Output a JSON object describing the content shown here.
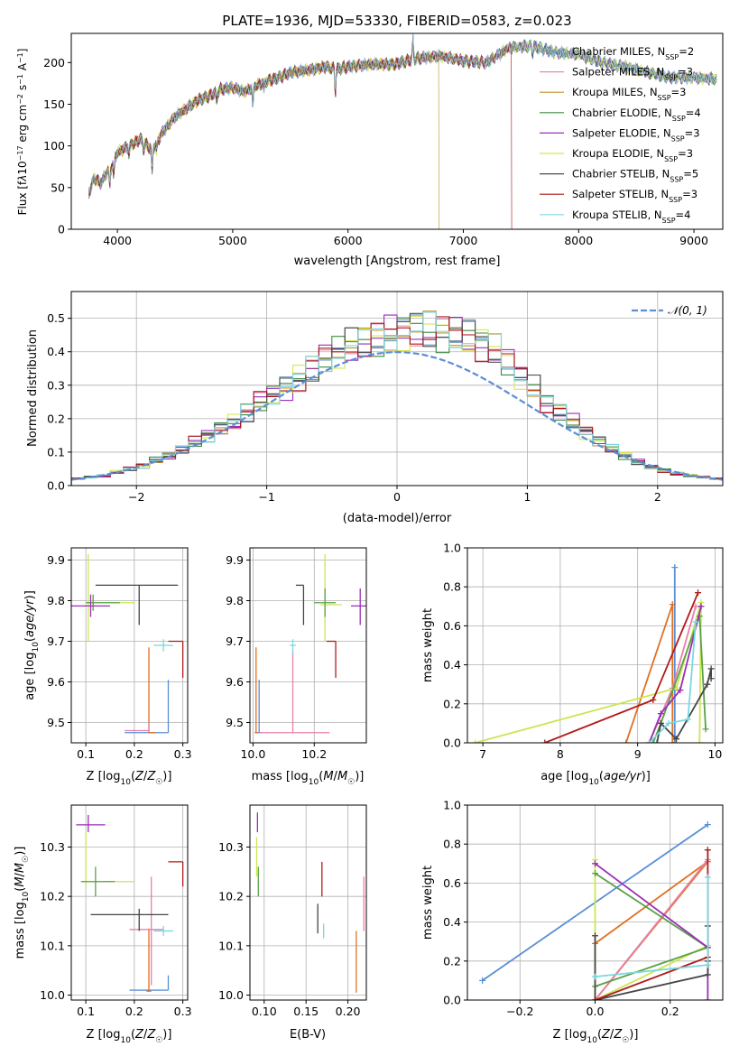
{
  "figure_title": "PLATE=1936, MJD=53330, FIBERID=0583, z=0.023",
  "colors": {
    "cMILES": "#6a9ac8",
    "sMILES": "#e88ab0",
    "kMILES": "#c8902a",
    "cELODIE": "#3f8a3f",
    "sELODIE": "#9a2fb8",
    "kELODIE": "#d8e64a",
    "cSTELIB": "#4d4d4d",
    "sSTELIB": "#a81818",
    "kSTELIB": "#7dd8e6",
    "blue": "#5b8fd6",
    "orange": "#e07020",
    "pink": "#e880a8",
    "lime": "#c8e850",
    "green": "#5aa048",
    "purple": "#9a2fb8",
    "dark": "#454545",
    "red": "#b01c1c",
    "cyan": "#7ad8e0"
  },
  "chart_data": [
    {
      "type": "line",
      "id": "spectrum",
      "title": "PLATE=1936, MJD=53330, FIBERID=0583, z=0.023",
      "xlabel": "wavelength [Angstrom, rest frame]",
      "ylabel": "Flux [f_λ 10^-17 erg cm^-2 s^-1 A^-1]",
      "xlim": [
        3600,
        9250
      ],
      "ylim": [
        0,
        235
      ],
      "xticks": [
        4000,
        5000,
        6000,
        7000,
        8000,
        9000
      ],
      "yticks": [
        0,
        50,
        100,
        150,
        200
      ],
      "grid": false,
      "legend": "upper right",
      "legend_entries": [
        "Chabrier MILES, N_SSP=2",
        "Salpeter MILES, N_SSP=3",
        "Kroupa MILES, N_SSP=3",
        "Chabrier ELODIE, N_SSP=4",
        "Salpeter ELODIE, N_SSP=3",
        "Kroupa ELODIE, N_SSP=3",
        "Chabrier STELIB, N_SSP=5",
        "Salpeter STELIB, N_SSP=3",
        "Kroupa STELIB, N_SSP=4"
      ],
      "legend_color_keys": [
        "cMILES",
        "sMILES",
        "kMILES",
        "cELODIE",
        "sELODIE",
        "kELODIE",
        "cSTELIB",
        "sSTELIB",
        "kSTELIB"
      ],
      "continuum": [
        [
          3750,
          42
        ],
        [
          3800,
          62
        ],
        [
          3850,
          55
        ],
        [
          3900,
          66
        ],
        [
          3950,
          75
        ],
        [
          4000,
          92
        ],
        [
          4100,
          100
        ],
        [
          4200,
          108
        ],
        [
          4300,
          95
        ],
        [
          4400,
          118
        ],
        [
          4500,
          135
        ],
        [
          4600,
          145
        ],
        [
          4700,
          155
        ],
        [
          4800,
          160
        ],
        [
          4900,
          168
        ],
        [
          5000,
          170
        ],
        [
          5100,
          165
        ],
        [
          5200,
          172
        ],
        [
          5300,
          178
        ],
        [
          5400,
          182
        ],
        [
          5500,
          188
        ],
        [
          5600,
          190
        ],
        [
          5700,
          192
        ],
        [
          5800,
          195
        ],
        [
          5900,
          192
        ],
        [
          6000,
          195
        ],
        [
          6200,
          198
        ],
        [
          6400,
          198
        ],
        [
          6600,
          205
        ],
        [
          6800,
          208
        ],
        [
          7000,
          202
        ],
        [
          7200,
          200
        ],
        [
          7400,
          218
        ],
        [
          7600,
          220
        ],
        [
          7800,
          212
        ],
        [
          8000,
          210
        ],
        [
          8200,
          200
        ],
        [
          8400,
          195
        ],
        [
          8600,
          188
        ],
        [
          8800,
          182
        ],
        [
          9000,
          182
        ],
        [
          9200,
          180
        ]
      ],
      "series_end_wavelength": [
        9200,
        9200,
        6790,
        9200,
        9200,
        9200,
        9200,
        7420,
        9200
      ]
    },
    {
      "type": "line",
      "id": "residuals",
      "xlabel": "(data-model)/error",
      "ylabel": "Normed distribution",
      "xlim": [
        -2.5,
        2.5
      ],
      "ylim": [
        0,
        0.58
      ],
      "xticks": [
        -2,
        -1,
        0,
        1,
        2
      ],
      "yticks": [
        0.0,
        0.1,
        0.2,
        0.3,
        0.4,
        0.5
      ],
      "grid": true,
      "legend": "upper right",
      "legend_entries": [
        "N(0,1)"
      ],
      "bin_width": 0.1,
      "hist_envelope": [
        0.02,
        0.025,
        0.03,
        0.04,
        0.05,
        0.06,
        0.075,
        0.09,
        0.11,
        0.13,
        0.15,
        0.17,
        0.19,
        0.22,
        0.25,
        0.27,
        0.29,
        0.32,
        0.35,
        0.38,
        0.4,
        0.42,
        0.43,
        0.44,
        0.45,
        0.46,
        0.47,
        0.46,
        0.46,
        0.45,
        0.44,
        0.43,
        0.4,
        0.37,
        0.33,
        0.29,
        0.25,
        0.22,
        0.19,
        0.16,
        0.13,
        0.11,
        0.09,
        0.07,
        0.055,
        0.045,
        0.035,
        0.03,
        0.025,
        0.02
      ]
    },
    {
      "type": "scatter",
      "id": "z_age",
      "xlabel": "Z [log10(Z/Z☉)]",
      "ylabel": "age [log10(age/yr)]",
      "xlim": [
        0.07,
        0.31
      ],
      "ylim": [
        9.45,
        9.93
      ],
      "xticks": [
        0.1,
        0.2,
        0.3
      ],
      "yticks": [
        9.5,
        9.6,
        9.7,
        9.8,
        9.9
      ],
      "grid": true,
      "points": [
        {
          "c": "blue",
          "x": 0.27,
          "y": 9.475,
          "xe": [
            0.18,
            0.27
          ],
          "ye": [
            9.475,
            9.605
          ]
        },
        {
          "c": "orange",
          "x": 0.23,
          "y": 9.475,
          "xe": [
            0.23,
            0.245
          ],
          "ye": [
            9.475,
            9.685
          ]
        },
        {
          "c": "pink",
          "x": 0.23,
          "y": 9.48,
          "xe": [
            0.18,
            0.23
          ],
          "ye": [
            9.48,
            9.5
          ]
        },
        {
          "c": "lime",
          "x": 0.105,
          "y": 9.795,
          "xe": [
            0.105,
            0.2
          ],
          "ye": [
            9.7,
            9.915
          ]
        },
        {
          "c": "green",
          "x": 0.115,
          "y": 9.795,
          "xe": [
            0.1,
            0.17
          ],
          "ye": [
            9.775,
            9.815
          ]
        },
        {
          "c": "purple",
          "x": 0.11,
          "y": 9.787,
          "xe": [
            0.07,
            0.15
          ],
          "ye": [
            9.76,
            9.815
          ]
        },
        {
          "c": "dark",
          "x": 0.21,
          "y": 9.838,
          "xe": [
            0.12,
            0.29
          ],
          "ye": [
            9.74,
            9.838
          ]
        },
        {
          "c": "red",
          "x": 0.3,
          "y": 9.7,
          "xe": [
            0.27,
            0.3
          ],
          "ye": [
            9.61,
            9.7
          ]
        },
        {
          "c": "cyan",
          "x": 0.26,
          "y": 9.69,
          "xe": [
            0.24,
            0.28
          ],
          "ye": [
            9.675,
            9.705
          ]
        }
      ]
    },
    {
      "type": "scatter",
      "id": "mass_age",
      "xlabel": "mass [log10(M/M☉)]",
      "ylabel": "",
      "xlim": [
        9.99,
        10.37
      ],
      "ylim": [
        9.45,
        9.93
      ],
      "xticks": [
        10.0,
        10.2
      ],
      "yticks": [
        9.5,
        9.6,
        9.7,
        9.8,
        9.9
      ],
      "grid": true,
      "points": [
        {
          "c": "blue",
          "x": 10.02,
          "y": 9.475,
          "xe": [
            10.01,
            10.03
          ],
          "ye": [
            9.475,
            9.605
          ]
        },
        {
          "c": "orange",
          "x": 10.01,
          "y": 9.475,
          "xe": [
            10.005,
            10.015
          ],
          "ye": [
            9.475,
            9.685
          ]
        },
        {
          "c": "pink",
          "x": 10.13,
          "y": 9.475,
          "xe": [
            10.02,
            10.25
          ],
          "ye": [
            9.475,
            9.68
          ]
        },
        {
          "c": "lime",
          "x": 10.235,
          "y": 9.79,
          "xe": [
            10.22,
            10.29
          ],
          "ye": [
            9.7,
            9.915
          ]
        },
        {
          "c": "green",
          "x": 10.235,
          "y": 9.795,
          "xe": [
            10.2,
            10.27
          ],
          "ye": [
            9.76,
            9.83
          ]
        },
        {
          "c": "purple",
          "x": 10.35,
          "y": 9.787,
          "xe": [
            10.32,
            10.37
          ],
          "ye": [
            9.74,
            9.83
          ]
        },
        {
          "c": "dark",
          "x": 10.165,
          "y": 9.838,
          "xe": [
            10.14,
            10.165
          ],
          "ye": [
            9.74,
            9.838
          ]
        },
        {
          "c": "red",
          "x": 10.27,
          "y": 9.7,
          "xe": [
            10.24,
            10.27
          ],
          "ye": [
            9.61,
            9.7
          ]
        },
        {
          "c": "cyan",
          "x": 10.13,
          "y": 9.69,
          "xe": [
            10.12,
            10.14
          ],
          "ye": [
            9.67,
            9.705
          ]
        }
      ]
    },
    {
      "type": "line",
      "id": "age_weight",
      "xlabel": "age [log10(age/yr)]",
      "ylabel": "mass weight",
      "xlim": [
        6.8,
        10.1
      ],
      "ylim": [
        0,
        1
      ],
      "xticks": [
        7,
        8,
        9,
        10
      ],
      "yticks": [
        0.0,
        0.2,
        0.4,
        0.6,
        0.8,
        1.0
      ],
      "grid": true,
      "series": [
        {
          "c": "blue",
          "x": [
            9.48,
            9.48
          ],
          "y": [
            0,
            0.9
          ]
        },
        {
          "c": "orange",
          "x": [
            8.85,
            9.45,
            9.45
          ],
          "y": [
            0,
            0.71,
            0
          ]
        },
        {
          "c": "pink",
          "x": [
            9.15,
            9.45,
            9.75
          ],
          "y": [
            0,
            0.28,
            0.7
          ]
        },
        {
          "c": "lime",
          "x": [
            6.9,
            9.5,
            9.82,
            9.8
          ],
          "y": [
            0,
            0.28,
            0.72,
            0
          ]
        },
        {
          "c": "green",
          "x": [
            9.2,
            9.3,
            9.8,
            9.88
          ],
          "y": [
            0,
            0.1,
            0.65,
            0.07
          ]
        },
        {
          "c": "purple",
          "x": [
            9.15,
            9.3,
            9.55,
            9.82
          ],
          "y": [
            0,
            0.15,
            0.27,
            0.7
          ]
        },
        {
          "c": "dark",
          "x": [
            9.25,
            9.3,
            9.5,
            9.9,
            9.95,
            9.95
          ],
          "y": [
            0,
            0.1,
            0.02,
            0.3,
            0.38,
            0.33
          ]
        },
        {
          "c": "red",
          "x": [
            7.8,
            9.2,
            9.78
          ],
          "y": [
            0,
            0.22,
            0.77
          ]
        },
        {
          "c": "cyan",
          "x": [
            9.15,
            9.4,
            9.65,
            9.75
          ],
          "y": [
            0,
            0.1,
            0.12,
            0.62
          ]
        }
      ]
    },
    {
      "type": "scatter",
      "id": "z_mass",
      "xlabel": "Z [log10(Z/Z☉)]",
      "ylabel": "mass [log10(M/M☉)]",
      "xlim": [
        0.07,
        0.31
      ],
      "ylim": [
        9.99,
        10.385
      ],
      "xticks": [
        0.1,
        0.2,
        0.3
      ],
      "yticks": [
        10.0,
        10.1,
        10.2,
        10.3
      ],
      "grid": true,
      "points": [
        {
          "c": "blue",
          "x": 0.27,
          "y": 10.01,
          "xe": [
            0.19,
            0.27
          ],
          "ye": [
            10.01,
            10.04
          ]
        },
        {
          "c": "orange",
          "x": 0.23,
          "y": 10.008,
          "xe": [
            0.225,
            0.235
          ],
          "ye": [
            10.008,
            10.135
          ]
        },
        {
          "c": "pink",
          "x": 0.235,
          "y": 10.133,
          "xe": [
            0.19,
            0.26
          ],
          "ye": [
            10.02,
            10.24
          ]
        },
        {
          "c": "lime",
          "x": 0.1,
          "y": 10.23,
          "xe": [
            0.09,
            0.2
          ],
          "ye": [
            10.22,
            10.33
          ]
        },
        {
          "c": "green",
          "x": 0.12,
          "y": 10.23,
          "xe": [
            0.09,
            0.16
          ],
          "ye": [
            10.2,
            10.26
          ]
        },
        {
          "c": "purple",
          "x": 0.105,
          "y": 10.345,
          "xe": [
            0.08,
            0.14
          ],
          "ye": [
            10.33,
            10.365
          ]
        },
        {
          "c": "dark",
          "x": 0.21,
          "y": 10.163,
          "xe": [
            0.11,
            0.27
          ],
          "ye": [
            10.13,
            10.175
          ]
        },
        {
          "c": "red",
          "x": 0.3,
          "y": 10.27,
          "xe": [
            0.27,
            0.3
          ],
          "ye": [
            10.22,
            10.27
          ]
        },
        {
          "c": "cyan",
          "x": 0.26,
          "y": 10.13,
          "xe": [
            0.24,
            0.28
          ],
          "ye": [
            10.12,
            10.14
          ]
        }
      ]
    },
    {
      "type": "scatter",
      "id": "ebv_mass",
      "xlabel": "E(B-V)",
      "ylabel": "",
      "xlim": [
        0.083,
        0.222
      ],
      "ylim": [
        9.99,
        10.385
      ],
      "xticks": [
        0.1,
        0.15,
        0.2
      ],
      "yticks": [
        10.0,
        10.1,
        10.2,
        10.3
      ],
      "grid": true,
      "points": [
        {
          "c": "orange",
          "x": 0.21,
          "y": 10.07,
          "xe": [
            0.21,
            0.21
          ],
          "ye": [
            10.005,
            10.13
          ]
        },
        {
          "c": "pink",
          "x": 0.219,
          "y": 10.19,
          "xe": [
            0.219,
            0.219
          ],
          "ye": [
            10.13,
            10.24
          ]
        },
        {
          "c": "lime",
          "x": 0.091,
          "y": 10.28,
          "xe": [
            0.091,
            0.091
          ],
          "ye": [
            10.24,
            10.32
          ]
        },
        {
          "c": "green",
          "x": 0.093,
          "y": 10.23,
          "xe": [
            0.093,
            0.093
          ],
          "ye": [
            10.2,
            10.26
          ]
        },
        {
          "c": "purple",
          "x": 0.092,
          "y": 10.35,
          "xe": [
            0.092,
            0.092
          ],
          "ye": [
            10.33,
            10.37
          ]
        },
        {
          "c": "dark",
          "x": 0.164,
          "y": 10.15,
          "xe": [
            0.164,
            0.164
          ],
          "ye": [
            10.125,
            10.185
          ]
        },
        {
          "c": "red",
          "x": 0.169,
          "y": 10.24,
          "xe": [
            0.169,
            0.169
          ],
          "ye": [
            10.2,
            10.27
          ]
        },
        {
          "c": "cyan",
          "x": 0.171,
          "y": 10.13,
          "xe": [
            0.171,
            0.171
          ],
          "ye": [
            10.115,
            10.145
          ]
        }
      ]
    },
    {
      "type": "line",
      "id": "z_weight",
      "xlabel": "Z [log10(Z/Z☉)]",
      "ylabel": "mass weight",
      "xlim": [
        -0.34,
        0.34
      ],
      "ylim": [
        0,
        1
      ],
      "xticks": [
        -0.2,
        0.0,
        0.2
      ],
      "yticks": [
        0.0,
        0.2,
        0.4,
        0.6,
        0.8,
        1.0
      ],
      "grid": true,
      "series": [
        {
          "c": "blue",
          "x": [
            -0.3,
            0.3
          ],
          "y": [
            0.1,
            0.9
          ]
        },
        {
          "c": "orange",
          "x": [
            0.0,
            0.3,
            0.0
          ],
          "y": [
            0.0,
            0.71,
            0.29
          ]
        },
        {
          "c": "pink",
          "x": [
            0.0,
            0.3
          ],
          "y": [
            0.0,
            0.72
          ]
        },
        {
          "c": "lime",
          "x": [
            0.0,
            0.0,
            0.3
          ],
          "y": [
            0.72,
            0.0,
            0.28
          ]
        },
        {
          "c": "green",
          "x": [
            0.0,
            0.3,
            0.0
          ],
          "y": [
            0.65,
            0.27,
            0.07
          ]
        },
        {
          "c": "purple",
          "x": [
            0.0,
            0.3,
            0.3
          ],
          "y": [
            0.7,
            0.27,
            0.0
          ]
        },
        {
          "c": "dark",
          "x": [
            0.0,
            0.0,
            0.3,
            0.3,
            0.3
          ],
          "y": [
            0.33,
            0.0,
            0.13,
            0.38,
            0.2
          ]
        },
        {
          "c": "red",
          "x": [
            0.0,
            0.3,
            0.3
          ],
          "y": [
            0.0,
            0.22,
            0.77
          ]
        },
        {
          "c": "cyan",
          "x": [
            0.0,
            0.3,
            0.3
          ],
          "y": [
            0.12,
            0.18,
            0.63
          ]
        }
      ]
    }
  ]
}
